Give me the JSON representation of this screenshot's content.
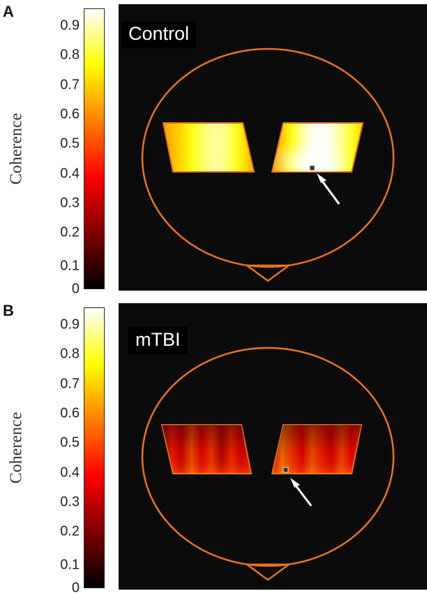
{
  "panels": [
    {
      "letter": "A",
      "title": "Control",
      "colorbar": {
        "label": "Coherence",
        "ticks": [
          "0.9",
          "0.8",
          "0.7",
          "0.6",
          "0.5",
          "0.4",
          "0.3",
          "0.2",
          "0.1",
          "0"
        ]
      }
    },
    {
      "letter": "B",
      "title": "mTBI",
      "colorbar": {
        "label": "Coherence",
        "ticks": [
          "0.9",
          "0.8",
          "0.7",
          "0.6",
          "0.5",
          "0.4",
          "0.3",
          "0.2",
          "0.1",
          "0"
        ]
      }
    }
  ],
  "chart_data": [
    {
      "type": "heatmap",
      "title": "Control",
      "colorbar_label": "Coherence",
      "colorbar_range": [
        0,
        0.95
      ],
      "colorbar_ticks": [
        0,
        0.1,
        0.2,
        0.3,
        0.4,
        0.5,
        0.6,
        0.7,
        0.8,
        0.9
      ],
      "colormap": "hot",
      "regions": [
        "left-hemisphere-patch",
        "right-hemisphere-patch"
      ],
      "seed_marker": "right-hemisphere-patch bottom-center, indicated by arrow",
      "region_profiles": {
        "left": [
          0.62,
          0.66,
          0.72,
          0.78,
          0.84,
          0.88,
          0.86,
          0.8,
          0.72,
          0.64
        ],
        "right": [
          0.6,
          0.68,
          0.78,
          0.88,
          0.94,
          0.95,
          0.92,
          0.86,
          0.78,
          0.7
        ]
      }
    },
    {
      "type": "heatmap",
      "title": "mTBI",
      "colorbar_label": "Coherence",
      "colorbar_range": [
        0,
        0.95
      ],
      "colorbar_ticks": [
        0,
        0.1,
        0.2,
        0.3,
        0.4,
        0.5,
        0.6,
        0.7,
        0.8,
        0.9
      ],
      "colormap": "hot",
      "regions": [
        "left-hemisphere-patch",
        "right-hemisphere-patch"
      ],
      "seed_marker": "right-hemisphere-patch bottom-left, indicated by arrow",
      "region_profiles": {
        "left": [
          0.28,
          0.42,
          0.32,
          0.5,
          0.36,
          0.46,
          0.3,
          0.44,
          0.34,
          0.4
        ],
        "right": [
          0.38,
          0.55,
          0.46,
          0.36,
          0.5,
          0.42,
          0.34,
          0.48,
          0.38,
          0.44
        ]
      }
    }
  ]
}
